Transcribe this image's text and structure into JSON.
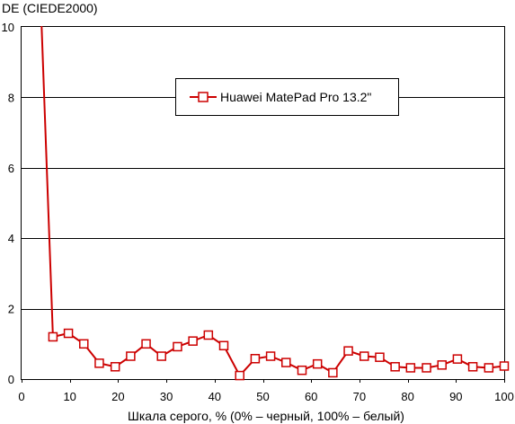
{
  "chart_data": {
    "type": "line",
    "ylabel": "DE (CIEDE2000)",
    "xlabel": "Шкала серого, % (0% – черный, 100% – белый)",
    "xlim": [
      0,
      100
    ],
    "ylim": [
      0,
      10
    ],
    "x_ticks": [
      0,
      10,
      20,
      30,
      40,
      50,
      60,
      70,
      80,
      90,
      100
    ],
    "y_ticks": [
      0,
      2,
      4,
      6,
      8,
      10
    ],
    "grid": "horizontal",
    "legend_position": "top-right",
    "series": [
      {
        "name": "Huawei MatePad Pro 13.2\"",
        "color": "#cc0000",
        "marker": "open-square",
        "x": [
          3.9,
          6.5,
          9.7,
          12.9,
          16.1,
          19.4,
          22.6,
          25.8,
          29.0,
          32.3,
          35.5,
          38.7,
          41.9,
          45.2,
          48.4,
          51.6,
          54.8,
          58.1,
          61.3,
          64.5,
          67.7,
          71.0,
          74.2,
          77.4,
          80.6,
          83.9,
          87.1,
          90.3,
          93.5,
          96.8,
          100.0
        ],
        "y": [
          11.0,
          1.2,
          1.3,
          1.0,
          0.45,
          0.35,
          0.65,
          1.0,
          0.65,
          0.92,
          1.08,
          1.25,
          0.95,
          0.1,
          0.58,
          0.65,
          0.47,
          0.25,
          0.43,
          0.18,
          0.8,
          0.65,
          0.62,
          0.35,
          0.32,
          0.32,
          0.4,
          0.57,
          0.35,
          0.32,
          0.37
        ]
      }
    ]
  }
}
